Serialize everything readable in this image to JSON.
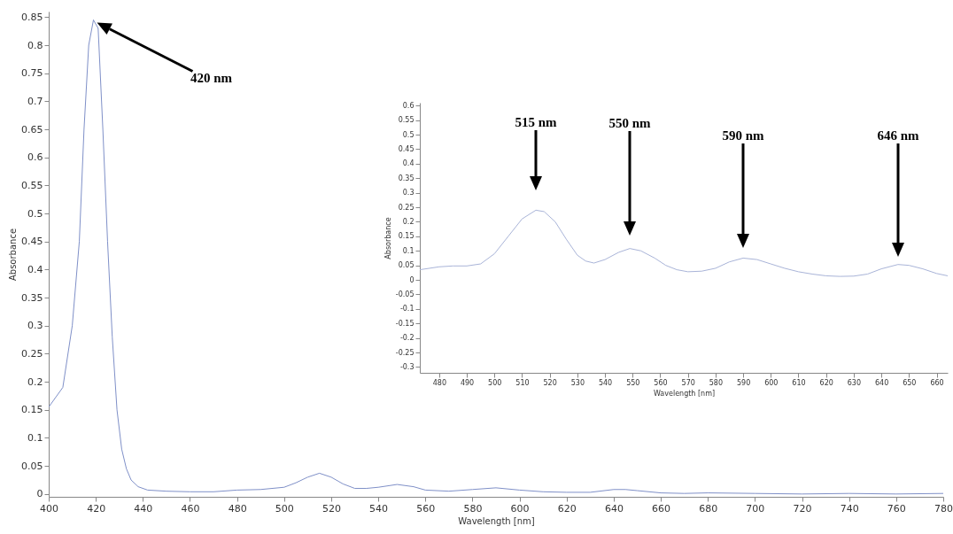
{
  "chart_data": [
    {
      "type": "line",
      "xlabel": "Wavelength [nm]",
      "ylabel": "Absorbance",
      "xlim": [
        400,
        780
      ],
      "ylim": [
        -0.005,
        0.86
      ],
      "xticks": [
        400,
        420,
        440,
        460,
        480,
        500,
        520,
        540,
        560,
        580,
        600,
        620,
        640,
        660,
        680,
        700,
        720,
        740,
        760,
        780
      ],
      "yticks": [
        0,
        0.05,
        0.1,
        0.15,
        0.2,
        0.25,
        0.3,
        0.35,
        0.4,
        0.45,
        0.5,
        0.55,
        0.6,
        0.65,
        0.7,
        0.75,
        0.8,
        0.85
      ],
      "x": [
        400,
        406,
        410,
        413,
        415,
        417,
        419,
        421,
        423,
        425,
        427,
        429,
        431,
        433,
        435,
        438,
        442,
        450,
        460,
        470,
        480,
        490,
        500,
        505,
        510,
        515,
        520,
        525,
        530,
        535,
        540,
        548,
        555,
        560,
        570,
        580,
        590,
        600,
        610,
        620,
        630,
        640,
        645,
        650,
        660,
        670,
        680,
        700,
        720,
        740,
        760,
        780
      ],
      "series": [
        {
          "color": "#7f90c8",
          "values": [
            0.155,
            0.19,
            0.3,
            0.45,
            0.65,
            0.8,
            0.845,
            0.83,
            0.65,
            0.45,
            0.28,
            0.15,
            0.08,
            0.045,
            0.025,
            0.013,
            0.007,
            0.005,
            0.004,
            0.004,
            0.007,
            0.008,
            0.012,
            0.02,
            0.03,
            0.037,
            0.03,
            0.018,
            0.01,
            0.01,
            0.012,
            0.017,
            0.013,
            0.007,
            0.005,
            0.008,
            0.011,
            0.007,
            0.004,
            0.003,
            0.003,
            0.008,
            0.008,
            0.006,
            0.002,
            0.001,
            0.002,
            0.001,
            0,
            0.001,
            0,
            0.001
          ]
        }
      ],
      "annotations": [
        "420 nm"
      ]
    },
    {
      "type": "line",
      "xlabel": "Wavelength [nm]",
      "ylabel": "Absorbance",
      "xlim": [
        473,
        664
      ],
      "ylim": [
        -0.32,
        0.61
      ],
      "xticks": [
        480,
        490,
        500,
        510,
        520,
        530,
        540,
        550,
        560,
        570,
        580,
        590,
        600,
        610,
        620,
        630,
        640,
        650,
        660
      ],
      "yticks": [
        -0.3,
        -0.25,
        -0.2,
        -0.15,
        -0.1,
        -0.05,
        0,
        0.05,
        0.1,
        0.15,
        0.2,
        0.25,
        0.3,
        0.35,
        0.4,
        0.45,
        0.5,
        0.55,
        0.6
      ],
      "x": [
        473,
        480,
        485,
        490,
        495,
        500,
        505,
        510,
        515,
        518,
        522,
        526,
        530,
        533,
        536,
        540,
        545,
        549,
        553,
        558,
        562,
        566,
        570,
        575,
        580,
        585,
        590,
        595,
        600,
        605,
        610,
        615,
        620,
        625,
        630,
        635,
        640,
        646,
        650,
        655,
        660,
        664
      ],
      "series": [
        {
          "color": "#a9b4d8",
          "values": [
            0.035,
            0.045,
            0.048,
            0.048,
            0.055,
            0.09,
            0.15,
            0.21,
            0.24,
            0.235,
            0.2,
            0.14,
            0.085,
            0.065,
            0.058,
            0.07,
            0.095,
            0.108,
            0.1,
            0.075,
            0.05,
            0.035,
            0.028,
            0.03,
            0.04,
            0.062,
            0.075,
            0.07,
            0.055,
            0.04,
            0.028,
            0.02,
            0.014,
            0.012,
            0.013,
            0.02,
            0.038,
            0.053,
            0.05,
            0.038,
            0.022,
            0.014
          ]
        }
      ],
      "annotations": [
        "515 nm",
        "550 nm",
        "590 nm",
        "646 nm"
      ]
    }
  ]
}
